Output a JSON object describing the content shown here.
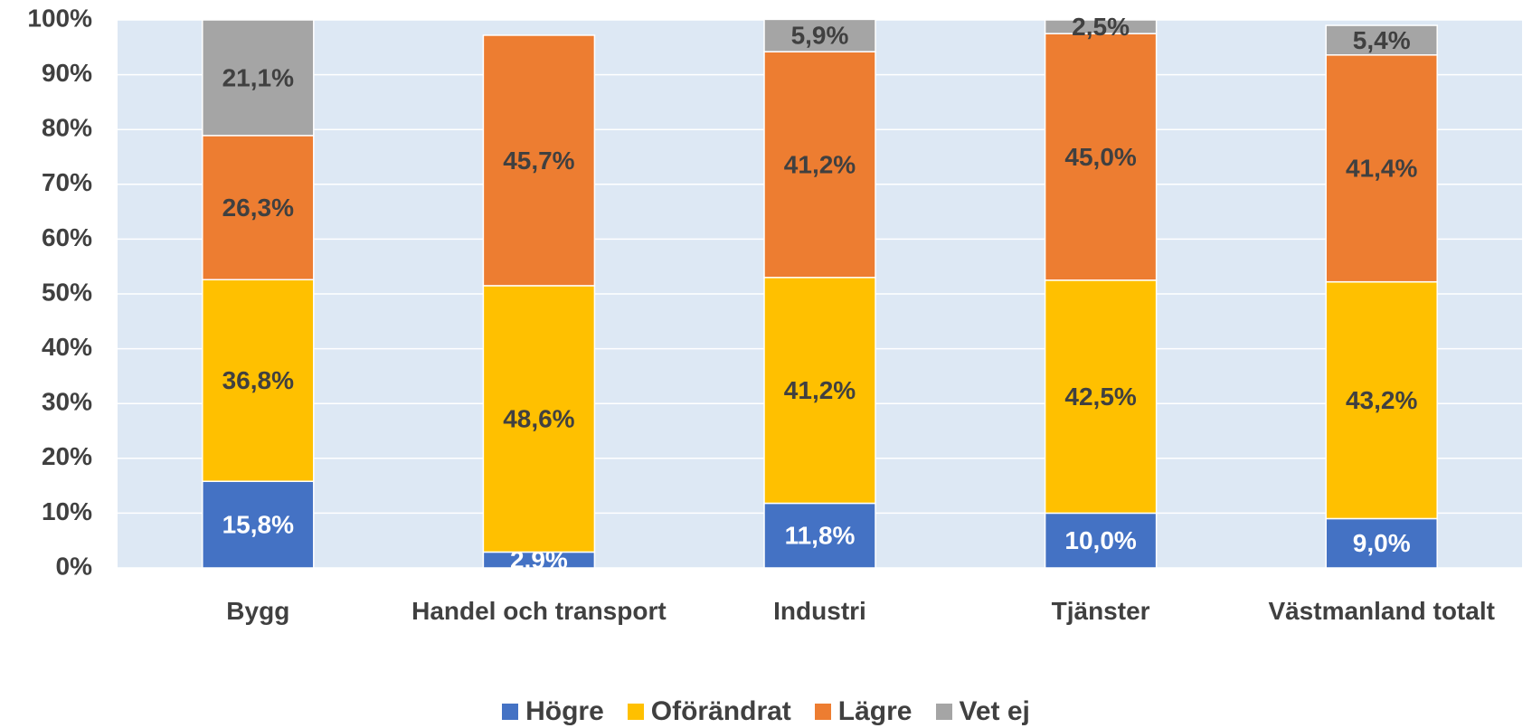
{
  "chart_data": {
    "type": "stacked_bar",
    "categories": [
      "Bygg",
      "Handel och transport",
      "Industri",
      "Tjänster",
      "Västmanland totalt"
    ],
    "series": [
      {
        "name": "Högre",
        "color": "#4472c4",
        "values": [
          15.8,
          2.9,
          11.8,
          10.0,
          9.0
        ],
        "value_labels": [
          "15,8%",
          "2,9%",
          "11,8%",
          "10,0%",
          "9,0%"
        ]
      },
      {
        "name": "Oförändrat",
        "color": "#ffc000",
        "values": [
          36.8,
          48.6,
          41.2,
          42.5,
          43.2
        ],
        "value_labels": [
          "36,8%",
          "48,6%",
          "41,2%",
          "42,5%",
          "43,2%"
        ]
      },
      {
        "name": "Lägre",
        "color": "#ed7d31",
        "values": [
          26.3,
          45.7,
          41.2,
          45.0,
          41.4
        ],
        "value_labels": [
          "26,3%",
          "45,7%",
          "41,2%",
          "45,0%",
          "41,4%"
        ]
      },
      {
        "name": "Vet ej",
        "color": "#a5a5a5",
        "values": [
          21.1,
          null,
          5.9,
          2.5,
          5.4
        ],
        "value_labels": [
          "21,1%",
          null,
          "5,9%",
          "2,5%",
          "5,4%"
        ]
      }
    ],
    "ylim": [
      0,
      100
    ],
    "yticks": [
      {
        "value": 0,
        "label": "0%"
      },
      {
        "value": 10,
        "label": "10%"
      },
      {
        "value": 20,
        "label": "20%"
      },
      {
        "value": 30,
        "label": "30%"
      },
      {
        "value": 40,
        "label": "40%"
      },
      {
        "value": 50,
        "label": "50%"
      },
      {
        "value": 60,
        "label": "60%"
      },
      {
        "value": 70,
        "label": "70%"
      },
      {
        "value": 80,
        "label": "80%"
      },
      {
        "value": 90,
        "label": "90%"
      },
      {
        "value": 100,
        "label": "100%"
      }
    ],
    "grid": true,
    "legend": "bottom"
  }
}
